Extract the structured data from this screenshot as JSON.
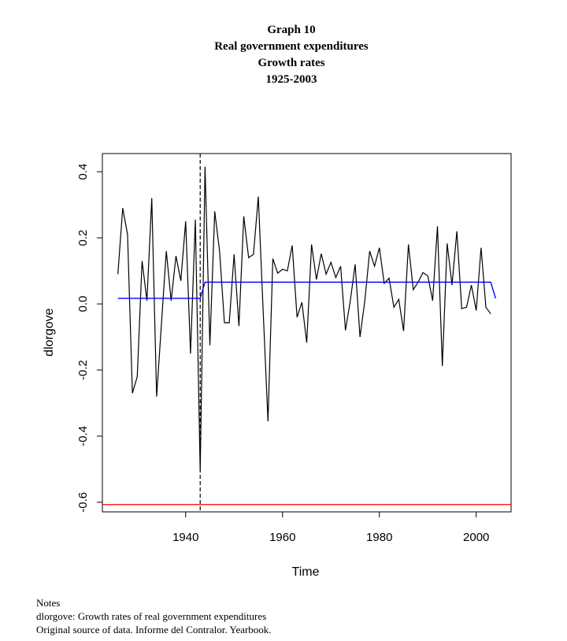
{
  "title_lines": [
    "Graph 10",
    "Real government expenditures",
    "Growth rates",
    "1925-2003"
  ],
  "notes": [
    "Notes",
    "dlorgove: Growth rates of real government expenditures",
    "Original source of data. Informe del Contralor. Yearbook."
  ],
  "chart_data": {
    "type": "line",
    "title": "Graph 10 / Real government expenditures / Growth rates / 1925-2003",
    "xlabel": "Time",
    "ylabel": "dlorgove",
    "xlim": [
      1922.8,
      2007.2
    ],
    "ylim": [
      -0.629,
      0.455
    ],
    "x_ticks": [
      1940,
      1960,
      1980,
      2000
    ],
    "y_ticks": [
      -0.6,
      -0.4,
      -0.2,
      0.0,
      0.2,
      0.4
    ],
    "y_tick_labels": [
      "-0.6",
      "-0.4",
      "-0.2",
      "0.0",
      "0.2",
      "0.4"
    ],
    "grid": false,
    "series": [
      {
        "color": "#000000",
        "x_start": 1926,
        "values": [
          0.09,
          0.29,
          0.21,
          -0.27,
          -0.22,
          0.13,
          0.01,
          0.32,
          -0.28,
          -0.06,
          0.16,
          0.01,
          0.145,
          0.07,
          0.25,
          -0.15,
          0.255,
          -0.505,
          0.415,
          -0.125,
          0.28,
          0.16,
          -0.057,
          -0.057,
          0.15,
          -0.067,
          0.265,
          0.14,
          0.15,
          0.325,
          -0.02,
          -0.355,
          0.137,
          0.093,
          0.105,
          0.1,
          0.177,
          -0.04,
          0.005,
          -0.117,
          0.18,
          0.074,
          0.152,
          0.09,
          0.126,
          0.08,
          0.114,
          -0.08,
          0.01,
          0.12,
          -0.1,
          0.01,
          0.16,
          0.114,
          0.17,
          0.062,
          0.078,
          -0.01,
          0.014,
          -0.082,
          0.18,
          0.043,
          0.066,
          0.095,
          0.085,
          0.01,
          0.235,
          -0.188,
          0.183,
          0.057,
          0.22,
          -0.014,
          -0.01,
          0.057,
          -0.02,
          0.17,
          -0.01,
          -0.03
        ]
      },
      {
        "color": "#0000ff",
        "points": [
          [
            1926,
            0.017
          ],
          [
            1943,
            0.017
          ],
          [
            1944,
            0.066
          ],
          [
            2003,
            0.066
          ],
          [
            2004,
            0.017
          ]
        ]
      }
    ],
    "vlines": [
      {
        "x": 1943,
        "style": "dashed",
        "color": "#000000"
      }
    ],
    "hlines": [
      {
        "y": -0.607,
        "color": "#ff0000"
      }
    ]
  }
}
